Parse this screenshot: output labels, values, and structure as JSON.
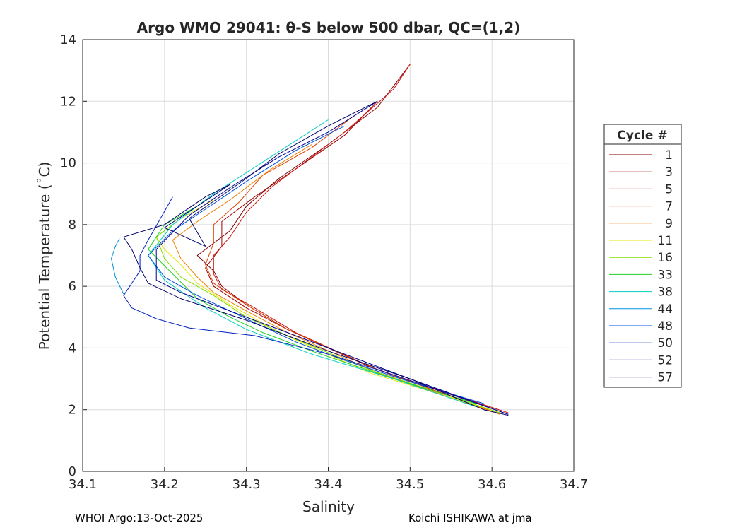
{
  "chart_data": {
    "type": "line",
    "title": "Argo WMO 29041: θ-S below 500 dbar,  QC=(1,2)",
    "xlabel": "Salinity",
    "ylabel": "Potential Temperature (˚C)",
    "xlim": [
      34.1,
      34.7
    ],
    "ylim": [
      0,
      14
    ],
    "xticks": [
      "34.1",
      "34.2",
      "34.3",
      "34.4",
      "34.5",
      "34.6",
      "34.7"
    ],
    "yticks": [
      "0",
      "2",
      "4",
      "6",
      "8",
      "10",
      "12",
      "14"
    ],
    "grid": true,
    "legend": {
      "title": "Cycle #",
      "placement": "outside-right"
    },
    "series": [
      {
        "name": "1",
        "color": "#800000",
        "points": [
          [
            34.62,
            1.85
          ],
          [
            34.45,
            3.4
          ],
          [
            34.35,
            4.6
          ],
          [
            34.3,
            5.4
          ],
          [
            34.27,
            6.0
          ],
          [
            34.26,
            6.5
          ],
          [
            34.24,
            7.0
          ],
          [
            34.28,
            7.8
          ],
          [
            34.3,
            8.6
          ],
          [
            34.34,
            9.5
          ],
          [
            34.4,
            10.6
          ],
          [
            34.46,
            11.8
          ],
          [
            34.5,
            13.2
          ]
        ]
      },
      {
        "name": "3",
        "color": "#a00000",
        "points": [
          [
            34.61,
            1.85
          ],
          [
            34.45,
            3.4
          ],
          [
            34.35,
            4.6
          ],
          [
            34.3,
            5.3
          ],
          [
            34.26,
            6.0
          ],
          [
            34.25,
            6.6
          ],
          [
            34.27,
            7.3
          ],
          [
            34.27,
            8.1
          ],
          [
            34.31,
            8.9
          ],
          [
            34.36,
            9.8
          ],
          [
            34.42,
            10.9
          ],
          [
            34.46,
            12.0
          ]
        ]
      },
      {
        "name": "5",
        "color": "#d01010",
        "points": [
          [
            34.62,
            1.9
          ],
          [
            34.46,
            3.3
          ],
          [
            34.36,
            4.5
          ],
          [
            34.31,
            5.3
          ],
          [
            34.27,
            5.9
          ],
          [
            34.26,
            6.4
          ],
          [
            34.26,
            7.0
          ],
          [
            34.28,
            7.6
          ],
          [
            34.3,
            8.4
          ],
          [
            34.33,
            9.2
          ],
          [
            34.37,
            10.0
          ],
          [
            34.42,
            11.0
          ],
          [
            34.48,
            12.4
          ],
          [
            34.5,
            13.2
          ]
        ]
      },
      {
        "name": "7",
        "color": "#e04000",
        "points": [
          [
            34.61,
            1.85
          ],
          [
            34.46,
            3.3
          ],
          [
            34.35,
            4.6
          ],
          [
            34.3,
            5.4
          ],
          [
            34.26,
            6.1
          ],
          [
            34.25,
            6.7
          ],
          [
            34.26,
            7.4
          ],
          [
            34.26,
            8.0
          ],
          [
            34.29,
            8.7
          ],
          [
            34.32,
            9.6
          ],
          [
            34.38,
            10.5
          ],
          [
            34.43,
            11.5
          ]
        ]
      },
      {
        "name": "9",
        "color": "#f08000",
        "points": [
          [
            34.61,
            1.85
          ],
          [
            34.46,
            3.2
          ],
          [
            34.35,
            4.5
          ],
          [
            34.3,
            5.2
          ],
          [
            34.26,
            5.8
          ],
          [
            34.24,
            6.3
          ],
          [
            34.22,
            6.9
          ],
          [
            34.21,
            7.5
          ],
          [
            34.24,
            8.1
          ],
          [
            34.28,
            8.8
          ],
          [
            34.33,
            9.8
          ],
          [
            34.38,
            10.6
          ]
        ]
      },
      {
        "name": "11",
        "color": "#e8e800",
        "points": [
          [
            34.61,
            1.9
          ],
          [
            34.45,
            3.2
          ],
          [
            34.34,
            4.5
          ],
          [
            34.28,
            5.4
          ],
          [
            34.24,
            6.1
          ],
          [
            34.22,
            6.7
          ],
          [
            34.2,
            7.2
          ],
          [
            34.19,
            7.6
          ],
          [
            34.22,
            8.2
          ],
          [
            34.26,
            8.8
          ]
        ]
      },
      {
        "name": "16",
        "color": "#80e000",
        "points": [
          [
            34.61,
            1.9
          ],
          [
            34.45,
            3.3
          ],
          [
            34.35,
            4.4
          ],
          [
            34.3,
            5.0
          ],
          [
            34.26,
            5.7
          ],
          [
            34.22,
            6.3
          ],
          [
            34.2,
            6.9
          ],
          [
            34.19,
            7.6
          ],
          [
            34.22,
            8.2
          ]
        ]
      },
      {
        "name": "33",
        "color": "#20d020",
        "points": [
          [
            34.58,
            2.2
          ],
          [
            34.48,
            3.0
          ],
          [
            34.38,
            3.9
          ],
          [
            34.32,
            4.5
          ],
          [
            34.28,
            5.0
          ],
          [
            34.24,
            5.6
          ],
          [
            34.21,
            6.4
          ],
          [
            34.18,
            7.2
          ],
          [
            34.2,
            8.0
          ],
          [
            34.24,
            8.6
          ]
        ]
      },
      {
        "name": "38",
        "color": "#00d0c0",
        "points": [
          [
            34.58,
            2.1
          ],
          [
            34.48,
            3.0
          ],
          [
            34.38,
            3.8
          ],
          [
            34.3,
            4.6
          ],
          [
            34.25,
            5.3
          ],
          [
            34.2,
            6.2
          ],
          [
            34.18,
            7.0
          ],
          [
            34.21,
            8.0
          ],
          [
            34.26,
            9.0
          ],
          [
            34.33,
            10.2
          ],
          [
            34.4,
            11.4
          ]
        ]
      },
      {
        "name": "44",
        "color": "#0090e0",
        "points": [
          [
            34.15,
            5.75
          ],
          [
            34.14,
            6.3
          ],
          [
            34.135,
            6.9
          ],
          [
            34.14,
            7.3
          ],
          [
            34.145,
            7.55
          ]
        ]
      },
      {
        "name": "48",
        "color": "#0050e0",
        "points": [
          [
            34.59,
            2.2
          ],
          [
            34.5,
            2.9
          ],
          [
            34.42,
            3.6
          ],
          [
            34.36,
            4.2
          ],
          [
            34.32,
            4.7
          ],
          [
            34.28,
            5.2
          ],
          [
            34.24,
            5.7
          ],
          [
            34.2,
            6.3
          ],
          [
            34.18,
            7.0
          ],
          [
            34.21,
            7.8
          ],
          [
            34.25,
            8.5
          ],
          [
            34.3,
            9.4
          ],
          [
            34.36,
            10.4
          ],
          [
            34.42,
            11.2
          ]
        ]
      },
      {
        "name": "50",
        "color": "#0020c0",
        "points": [
          [
            34.62,
            1.85
          ],
          [
            34.55,
            2.5
          ],
          [
            34.46,
            3.3
          ],
          [
            34.4,
            3.8
          ],
          [
            34.31,
            4.4
          ],
          [
            34.23,
            4.65
          ],
          [
            34.19,
            4.95
          ],
          [
            34.16,
            5.3
          ],
          [
            34.15,
            5.7
          ],
          [
            34.16,
            6.1
          ],
          [
            34.17,
            6.5
          ],
          [
            34.17,
            7.0
          ],
          [
            34.18,
            7.5
          ],
          [
            34.21,
            8.9
          ]
        ]
      },
      {
        "name": "52",
        "color": "#000090",
        "points": [
          [
            34.62,
            1.85
          ],
          [
            34.5,
            3.0
          ],
          [
            34.4,
            4.0
          ],
          [
            34.3,
            5.0
          ],
          [
            34.22,
            5.8
          ],
          [
            34.19,
            6.2
          ],
          [
            34.19,
            7.2
          ],
          [
            34.23,
            8.3
          ],
          [
            34.28,
            9.2
          ],
          [
            34.34,
            10.2
          ],
          [
            34.4,
            11.0
          ],
          [
            34.46,
            12.0
          ]
        ]
      },
      {
        "name": "57",
        "color": "#00006c",
        "points": [
          [
            34.62,
            1.82
          ],
          [
            34.59,
            2.0
          ],
          [
            34.5,
            3.0
          ],
          [
            34.4,
            3.9
          ],
          [
            34.3,
            4.9
          ],
          [
            34.22,
            5.6
          ],
          [
            34.18,
            6.1
          ],
          [
            34.17,
            6.6
          ],
          [
            34.16,
            7.2
          ],
          [
            34.15,
            7.6
          ],
          [
            34.2,
            8.0
          ],
          [
            34.25,
            8.9
          ],
          [
            34.28,
            9.3
          ],
          [
            34.2,
            7.9
          ],
          [
            34.25,
            7.3
          ],
          [
            34.23,
            8.2
          ],
          [
            34.3,
            9.5
          ],
          [
            34.34,
            10.3
          ],
          [
            34.4,
            11.2
          ],
          [
            34.46,
            12.0
          ]
        ]
      }
    ]
  },
  "footer": {
    "left": "WHOI Argo:13-Oct-2025",
    "right": "Koichi ISHIKAWA at jma"
  }
}
